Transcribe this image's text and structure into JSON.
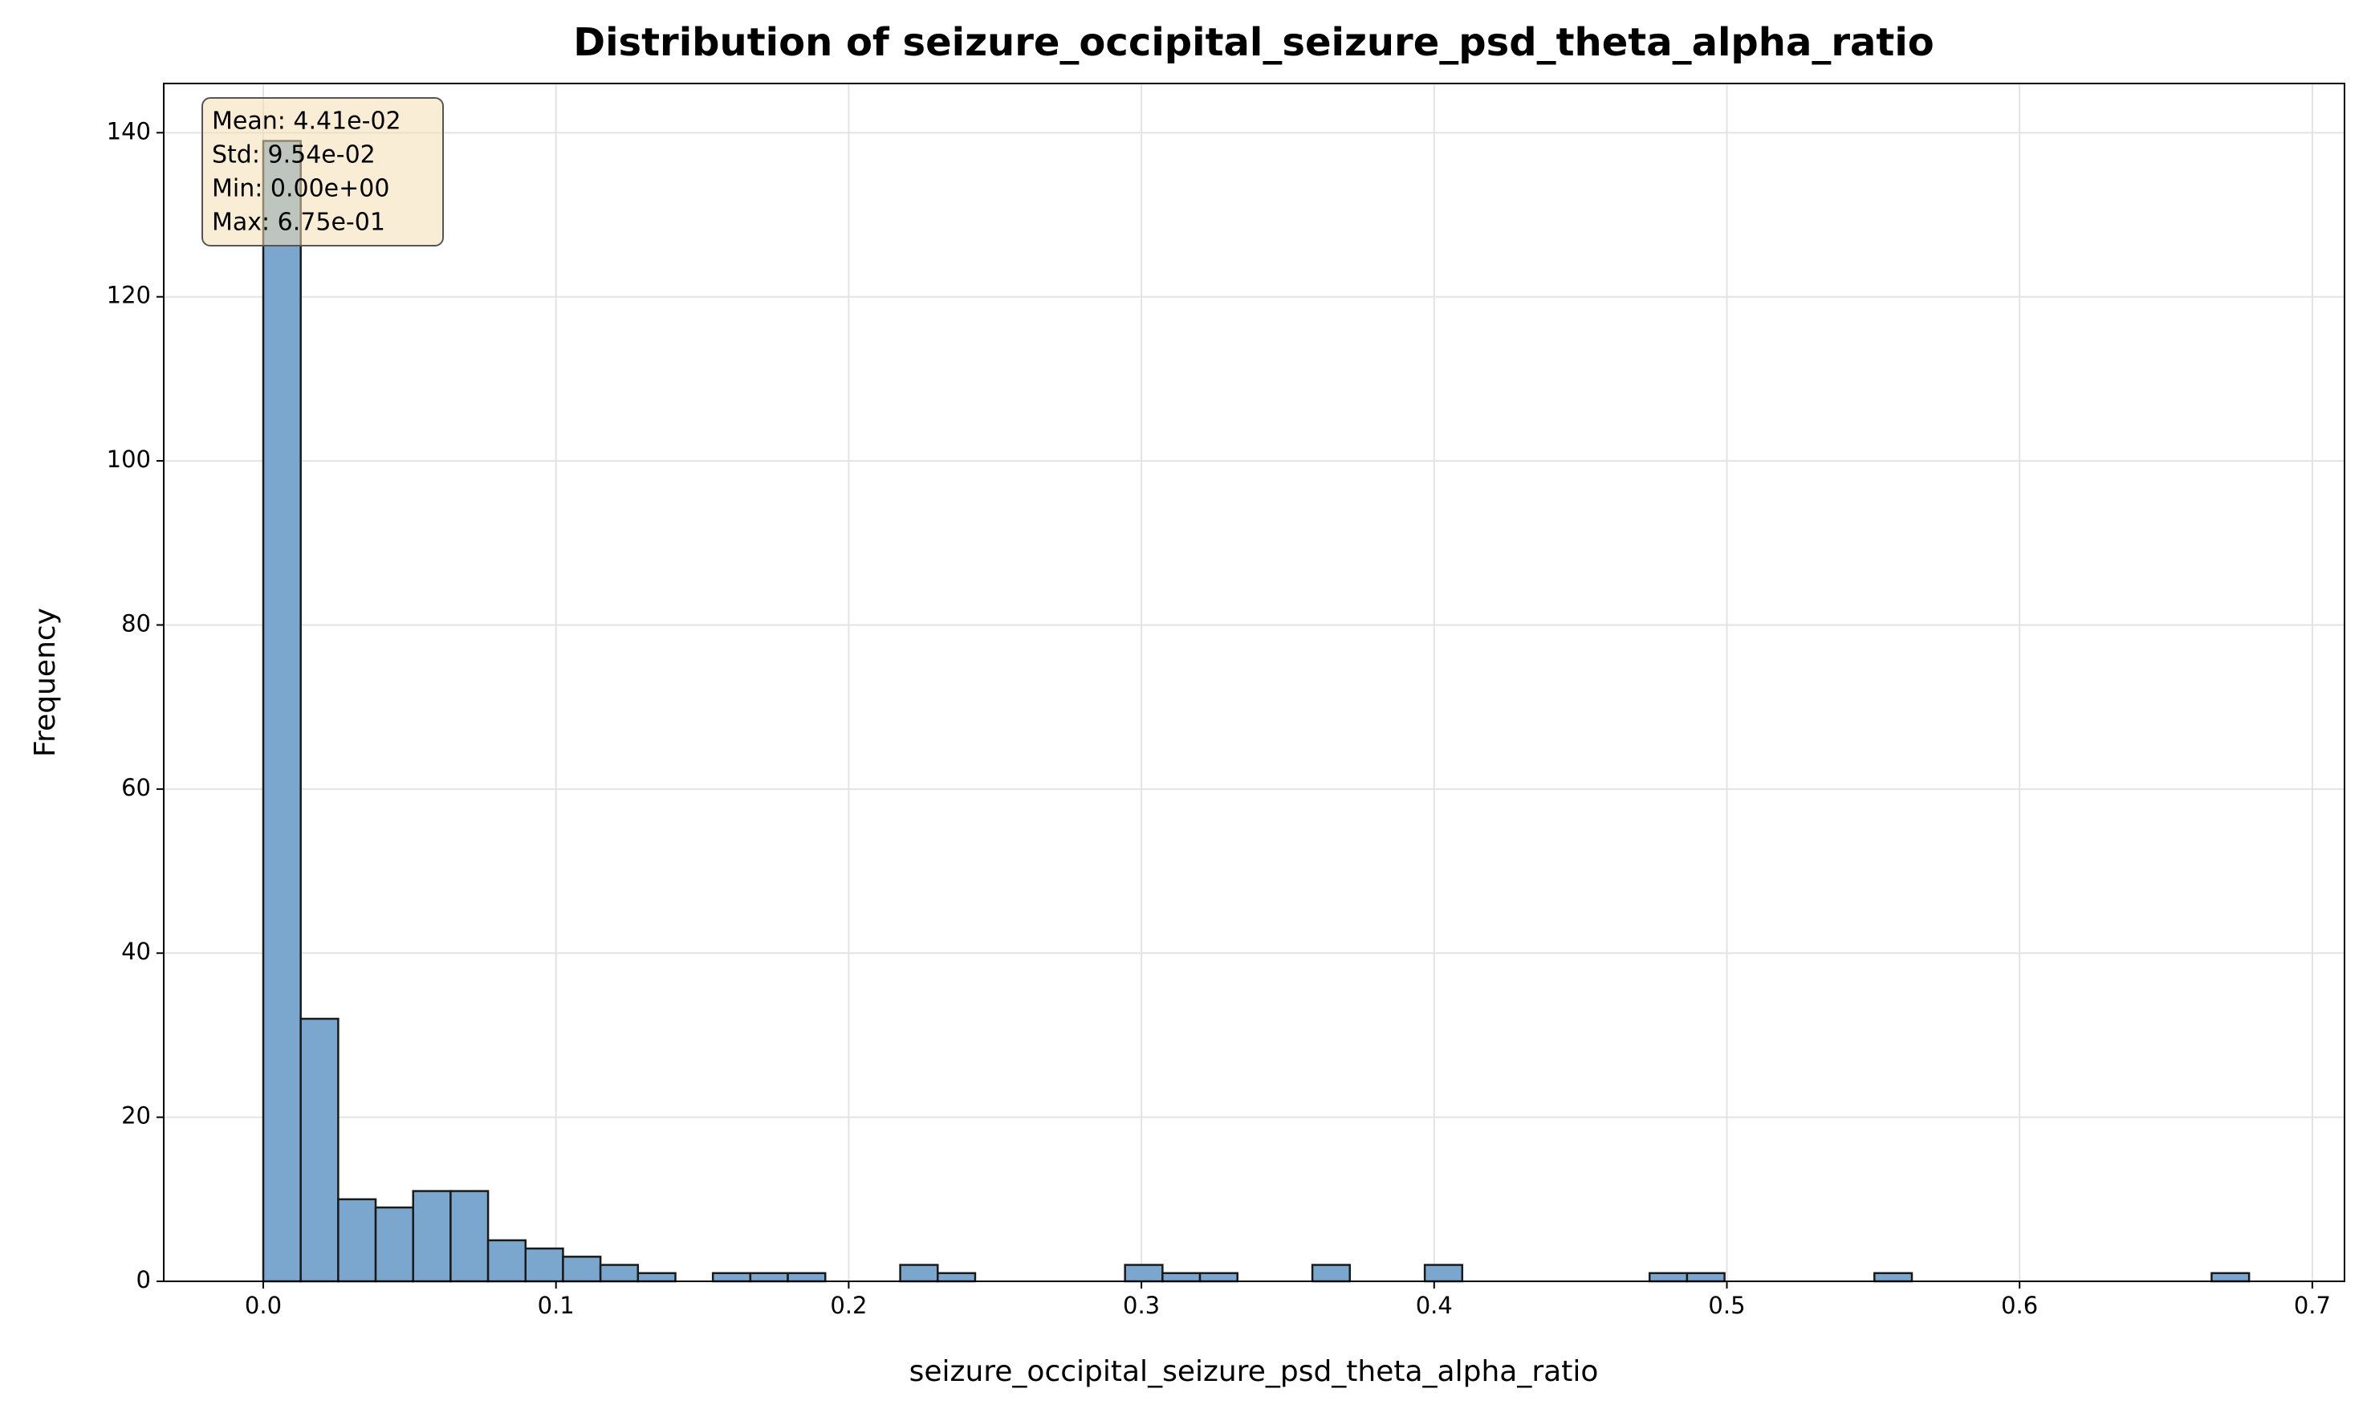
{
  "chart_data": {
    "type": "histogram",
    "title": "Distribution of seizure_occipital_seizure_psd_theta_alpha_ratio",
    "x_label": "seizure_occipital_seizure_psd_theta_alpha_ratio",
    "y_label": "Frequency",
    "annotation": [
      "Mean: 4.41e-02",
      "Std: 9.54e-02",
      "Min: 0.00e+00",
      "Max: 6.75e-01"
    ],
    "bins": [
      0,
      0.0128,
      0.0256,
      0.0384,
      0.0512,
      0.064,
      0.0768,
      0.0896,
      0.1024,
      0.1152,
      0.128,
      0.1408,
      0.1536,
      0.1664,
      0.1792,
      0.192,
      0.2048,
      0.2176,
      0.2304,
      0.2432,
      0.256,
      0.2688,
      0.2816,
      0.2944,
      0.3072,
      0.32,
      0.3328,
      0.3456,
      0.3584,
      0.3712,
      0.384,
      0.3968,
      0.4096,
      0.4224,
      0.4352,
      0.448,
      0.4608,
      0.4736,
      0.4864,
      0.4992,
      0.512,
      0.5248,
      0.5376,
      0.5504,
      0.5632,
      0.576,
      0.5888,
      0.6016,
      0.6144,
      0.6272,
      0.64,
      0.6528,
      0.6656,
      0.6784
    ],
    "values": [
      139,
      32,
      10,
      9,
      11,
      11,
      5,
      4,
      3,
      2,
      1,
      0,
      1,
      1,
      1,
      0,
      0,
      2,
      1,
      0,
      0,
      0,
      0,
      2,
      1,
      1,
      0,
      0,
      2,
      0,
      0,
      2,
      0,
      0,
      0,
      0,
      0,
      1,
      1,
      0,
      0,
      0,
      0,
      1,
      0,
      0,
      0,
      0,
      0,
      0,
      0,
      0,
      1
    ],
    "color": "#7ba7cf",
    "edgecolor": "#1a1a1a",
    "xlim": [
      -0.034,
      0.711
    ],
    "ylim": [
      0,
      146
    ],
    "xticks": [
      {
        "value": 0,
        "label": "0.0"
      },
      0.1,
      0.2,
      0.3,
      0.4,
      0.5,
      0.6,
      0.7
    ],
    "yticks": [
      0,
      20,
      40,
      60,
      80,
      100,
      120,
      140
    ],
    "grid": true
  }
}
